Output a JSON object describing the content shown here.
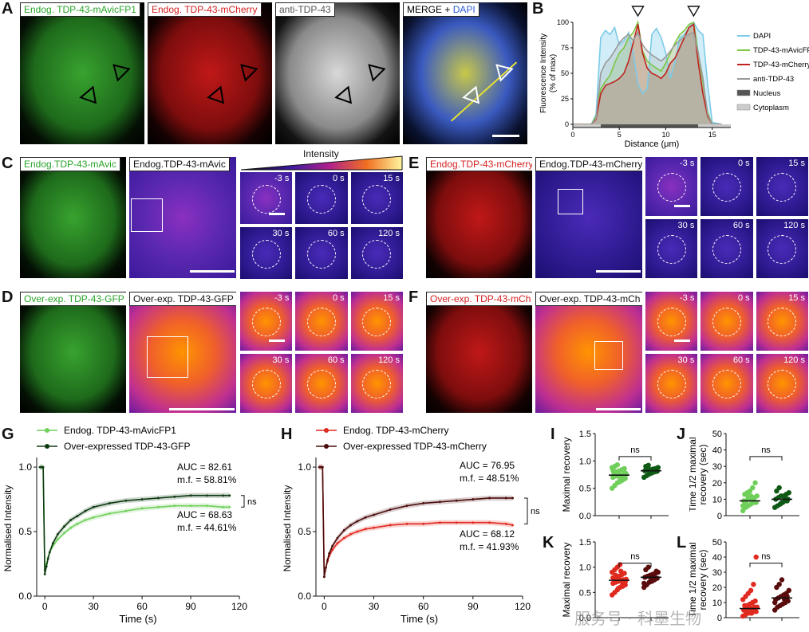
{
  "panel_letters": [
    "A",
    "B",
    "C",
    "D",
    "E",
    "F",
    "G",
    "H",
    "I",
    "J",
    "K",
    "L"
  ],
  "panelA": {
    "labels": [
      "Endog. TDP-43-mAvicFP1",
      "Endog. TDP-43-mCherry",
      "anti-TDP-43",
      "MERGE + ",
      "DAPI"
    ],
    "label_colors": [
      "#29a329",
      "#d42020",
      "#555555",
      "#111111",
      "#2b5bd8"
    ]
  },
  "panelB": {
    "ylabel": "Fluorescence Intensity (% of max)",
    "xlabel": "Distance (μm)",
    "legend": [
      "DAPI",
      "TDP-43-mAvicFP1",
      "TDP-43-mCherry",
      "anti-TDP-43",
      "Nucleus",
      "Cytoplasm"
    ],
    "colors": {
      "dapi": "#7ccbe8",
      "mavic": "#7cc644",
      "mcherry": "#c0231e",
      "anti": "#9a9a9a",
      "nucleus": "#555555",
      "cytoplasm": "#cccccc"
    }
  },
  "panelC": {
    "labels": [
      "Endog.TDP-43-mAvic",
      "Endog.TDP-43-mAvic"
    ],
    "intensity": "Intensity",
    "times": [
      "-3 s",
      "0 s",
      "15 s",
      "30 s",
      "60 s",
      "120 s"
    ]
  },
  "panelD": {
    "labels": [
      "Over-exp. TDP-43-GFP",
      "Over-exp. TDP-43-GFP"
    ],
    "times": [
      "-3 s",
      "0 s",
      "15 s",
      "30 s",
      "60 s",
      "120 s"
    ]
  },
  "panelE": {
    "labels": [
      "Endog.TDP-43-mCherry",
      "Endog.TDP-43-mCherry"
    ],
    "times": [
      "-3 s",
      "0 s",
      "15 s",
      "30 s",
      "60 s",
      "120 s"
    ]
  },
  "panelF": {
    "labels": [
      "Over-exp. TDP-43-mCh",
      "Over-exp. TDP-43-mCh"
    ],
    "times": [
      "-3 s",
      "0 s",
      "15 s",
      "30 s",
      "60 s",
      "120 s"
    ]
  },
  "panelG": {
    "legend": [
      "Endog. TDP-43-mAvicFP1",
      "Over-expressed TDP-43-GFP"
    ],
    "ann1": [
      "AUC = 82.61",
      "m.f. = 58.81%"
    ],
    "ann2": [
      "AUC = 68.63",
      "m.f. = 44.61%"
    ],
    "ns": "ns"
  },
  "panelH": {
    "legend": [
      "Endog. TDP-43-mCherry",
      "Over-expressed TDP-43-mCherry"
    ],
    "ann1": [
      "AUC = 76.95",
      "m.f. = 48.51%"
    ],
    "ann2": [
      "AUC = 68.12",
      "m.f. = 41.93%"
    ],
    "ns": "ns"
  },
  "panelI": {
    "ylabel": "Maximal recovery",
    "ns": "ns"
  },
  "panelJ": {
    "ylabel": "Time 1/2 maximal recovery (sec)",
    "ns": "ns"
  },
  "panelK": {
    "ylabel": "Maximal recovery",
    "ns": "ns"
  },
  "panelL": {
    "ylabel": "Time 1/2 maximal recovery (sec)",
    "ns": "ns"
  },
  "watermark": "服务号 · 科墨生物",
  "chart_data": [
    {
      "id": "B",
      "type": "line",
      "title": "",
      "xlabel": "Distance (μm)",
      "ylabel": "Fluorescence Intensity (% of max)",
      "xlim": [
        0,
        17
      ],
      "ylim": [
        0,
        100
      ],
      "xticks": [
        0,
        5,
        10,
        15
      ],
      "yticks": [
        0,
        25,
        50,
        75,
        100
      ],
      "x": [
        0,
        2,
        2.5,
        3,
        3.5,
        4,
        4.5,
        5,
        5.5,
        6,
        6.5,
        7,
        7.5,
        8,
        8.5,
        9,
        9.5,
        10,
        10.5,
        11,
        11.5,
        12,
        12.5,
        13,
        13.5,
        14,
        14.5,
        15,
        16
      ],
      "series": [
        {
          "name": "DAPI",
          "values": [
            0,
            0,
            10,
            85,
            92,
            88,
            95,
            78,
            82,
            90,
            70,
            40,
            30,
            35,
            88,
            94,
            85,
            70,
            45,
            62,
            85,
            88,
            95,
            100,
            92,
            88,
            40,
            2,
            0
          ]
        },
        {
          "name": "TDP-43-mAvicFP1",
          "values": [
            0,
            0,
            8,
            35,
            42,
            48,
            60,
            70,
            75,
            85,
            90,
            100,
            72,
            62,
            58,
            55,
            52,
            60,
            70,
            80,
            88,
            92,
            98,
            100,
            70,
            40,
            12,
            0,
            0
          ]
        },
        {
          "name": "TDP-43-mCherry",
          "values": [
            0,
            0,
            5,
            30,
            38,
            40,
            42,
            45,
            50,
            62,
            80,
            98,
            70,
            55,
            50,
            48,
            45,
            50,
            60,
            65,
            75,
            85,
            95,
            98,
            60,
            30,
            8,
            0,
            0
          ]
        },
        {
          "name": "anti-TDP-43",
          "values": [
            0,
            0,
            6,
            50,
            60,
            65,
            72,
            80,
            85,
            88,
            82,
            90,
            78,
            72,
            68,
            65,
            62,
            66,
            72,
            78,
            82,
            86,
            88,
            90,
            70,
            45,
            10,
            0,
            0
          ]
        }
      ]
    },
    {
      "id": "G",
      "type": "line",
      "xlabel": "Time (s)",
      "ylabel": "Normalised Intensity",
      "xlim": [
        -5,
        120
      ],
      "ylim": [
        0,
        1.05
      ],
      "xticks": [
        0,
        30,
        60,
        90,
        120
      ],
      "yticks": [
        0.0,
        0.5,
        1.0
      ],
      "x": [
        -3,
        -2,
        -1,
        0,
        1,
        2,
        3,
        5,
        8,
        12,
        16,
        20,
        25,
        30,
        40,
        50,
        60,
        70,
        80,
        90,
        100,
        110,
        114
      ],
      "series": [
        {
          "name": "Endog. TDP-43-mAvicFP1",
          "values": [
            1.0,
            1.0,
            1.0,
            0.2,
            0.25,
            0.3,
            0.34,
            0.39,
            0.44,
            0.49,
            0.53,
            0.56,
            0.59,
            0.61,
            0.64,
            0.66,
            0.68,
            0.69,
            0.7,
            0.7,
            0.7,
            0.69,
            0.69
          ]
        },
        {
          "name": "Over-expressed TDP-43-GFP",
          "values": [
            1.0,
            1.0,
            1.0,
            0.17,
            0.23,
            0.29,
            0.34,
            0.41,
            0.48,
            0.54,
            0.59,
            0.62,
            0.66,
            0.69,
            0.72,
            0.74,
            0.75,
            0.76,
            0.77,
            0.78,
            0.78,
            0.78,
            0.78
          ]
        }
      ]
    },
    {
      "id": "H",
      "type": "line",
      "xlabel": "Time (s)",
      "ylabel": "Normalised Intensity",
      "xlim": [
        -5,
        120
      ],
      "ylim": [
        0,
        1.05
      ],
      "xticks": [
        0,
        30,
        60,
        90,
        120
      ],
      "yticks": [
        0.0,
        0.5,
        1.0
      ],
      "x": [
        -3,
        -2,
        -1,
        0,
        1,
        2,
        3,
        5,
        8,
        12,
        16,
        20,
        25,
        30,
        40,
        50,
        60,
        70,
        80,
        90,
        100,
        110,
        114
      ],
      "series": [
        {
          "name": "Endog. TDP-43-mCherry",
          "values": [
            1.0,
            1.0,
            1.0,
            0.15,
            0.22,
            0.27,
            0.31,
            0.36,
            0.41,
            0.45,
            0.48,
            0.5,
            0.52,
            0.53,
            0.55,
            0.56,
            0.56,
            0.57,
            0.57,
            0.57,
            0.57,
            0.56,
            0.55
          ]
        },
        {
          "name": "Over-expressed TDP-43-mCherry",
          "values": [
            1.0,
            1.0,
            1.0,
            0.15,
            0.22,
            0.28,
            0.33,
            0.39,
            0.45,
            0.51,
            0.55,
            0.58,
            0.61,
            0.63,
            0.67,
            0.7,
            0.72,
            0.73,
            0.74,
            0.75,
            0.76,
            0.76,
            0.76
          ]
        }
      ]
    },
    {
      "id": "I",
      "type": "scatter",
      "ylabel": "Maximal recovery",
      "ylim": [
        0.0,
        1.5
      ],
      "yticks": [
        0.0,
        0.5,
        1.0,
        1.5
      ],
      "groups": [
        {
          "name": "Endog. TDP-43-mAvicFP1",
          "median": 0.74,
          "values": [
            0.5,
            0.55,
            0.6,
            0.62,
            0.65,
            0.68,
            0.7,
            0.72,
            0.73,
            0.74,
            0.75,
            0.76,
            0.78,
            0.8,
            0.82,
            0.84,
            0.86,
            0.88,
            0.9,
            0.93,
            0.65,
            0.7,
            0.78,
            0.83
          ]
        },
        {
          "name": "Over-expressed TDP-43-GFP",
          "median": 0.82,
          "values": [
            0.7,
            0.73,
            0.76,
            0.78,
            0.8,
            0.81,
            0.82,
            0.83,
            0.84,
            0.85,
            0.86,
            0.88,
            0.9,
            0.92,
            0.78,
            0.82,
            0.86
          ]
        }
      ]
    },
    {
      "id": "J",
      "type": "scatter",
      "ylabel": "Time 1/2 maximal recovery (sec)",
      "ylim": [
        0,
        50
      ],
      "yticks": [
        0,
        10,
        20,
        30,
        40,
        50
      ],
      "groups": [
        {
          "name": "Endog. TDP-43-mAvicFP1",
          "median": 9,
          "values": [
            3,
            5,
            6,
            7,
            8,
            8,
            9,
            9,
            10,
            10,
            11,
            12,
            13,
            14,
            15,
            17,
            20,
            6,
            8,
            11,
            12,
            9
          ]
        },
        {
          "name": "Over-expressed TDP-43-GFP",
          "median": 10,
          "values": [
            5,
            6,
            7,
            8,
            9,
            10,
            10,
            11,
            12,
            12,
            13,
            14,
            15,
            17,
            8,
            11,
            9
          ]
        }
      ]
    },
    {
      "id": "K",
      "type": "scatter",
      "ylabel": "Maximal recovery",
      "ylim": [
        0.0,
        1.5
      ],
      "yticks": [
        0.0,
        0.5,
        1.0,
        1.5
      ],
      "groups": [
        {
          "name": "Endog. TDP-43-mCherry",
          "median": 0.74,
          "values": [
            0.45,
            0.5,
            0.55,
            0.6,
            0.62,
            0.65,
            0.68,
            0.7,
            0.72,
            0.74,
            0.75,
            0.76,
            0.78,
            0.8,
            0.82,
            0.85,
            0.88,
            0.9,
            0.95,
            1.0,
            1.05,
            0.66,
            0.71,
            0.79,
            0.84,
            0.58,
            0.92
          ]
        },
        {
          "name": "Over-expressed TDP-43-mCherry",
          "median": 0.8,
          "values": [
            0.6,
            0.65,
            0.7,
            0.72,
            0.75,
            0.78,
            0.8,
            0.82,
            0.84,
            0.86,
            0.88,
            0.9,
            0.95,
            1.0,
            0.77,
            0.83,
            0.92,
            0.68
          ]
        }
      ]
    },
    {
      "id": "L",
      "type": "scatter",
      "ylabel": "Time 1/2 maximal recovery (sec)",
      "ylim": [
        0,
        50
      ],
      "yticks": [
        0,
        10,
        20,
        30,
        40,
        50
      ],
      "groups": [
        {
          "name": "Endog. TDP-43-mCherry",
          "median": 6,
          "values": [
            1,
            2,
            3,
            3,
            4,
            4,
            5,
            5,
            6,
            6,
            7,
            7,
            8,
            8,
            9,
            10,
            11,
            12,
            14,
            16,
            18,
            22,
            40,
            5,
            6,
            7,
            3
          ]
        },
        {
          "name": "Over-expressed TDP-43-mCherry",
          "median": 13,
          "values": [
            5,
            7,
            8,
            9,
            10,
            11,
            12,
            13,
            14,
            15,
            16,
            18,
            20,
            22,
            25,
            12,
            14,
            10
          ]
        }
      ]
    }
  ]
}
